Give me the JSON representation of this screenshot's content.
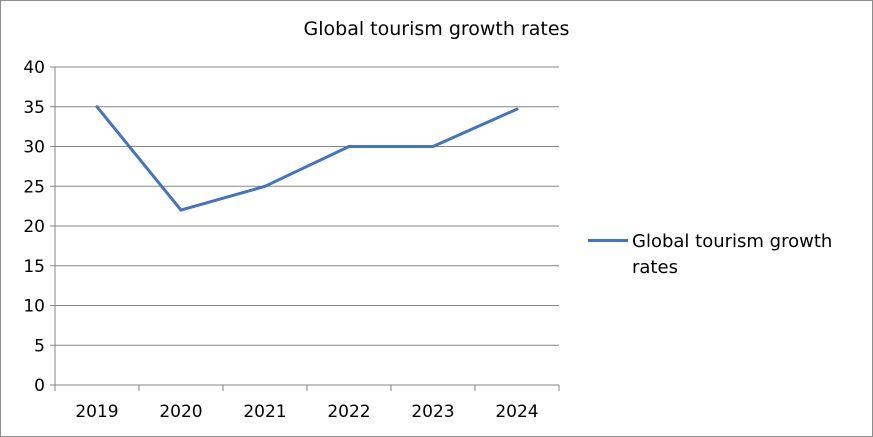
{
  "chart_data": {
    "type": "line",
    "title": "Global tourism growth rates",
    "xlabel": "",
    "ylabel": "",
    "categories": [
      "2019",
      "2020",
      "2021",
      "2022",
      "2023",
      "2024"
    ],
    "series": [
      {
        "name": "Global tourism growth rates",
        "values": [
          35,
          22,
          25,
          30,
          30,
          34.7
        ],
        "color": "#4472c4"
      }
    ],
    "ylim": [
      0,
      40
    ],
    "yticks": [
      "0",
      "5",
      "10",
      "15",
      "20",
      "25",
      "30",
      "35",
      "40"
    ],
    "grid": true,
    "legend": "right",
    "gridline_color": "#868686"
  }
}
